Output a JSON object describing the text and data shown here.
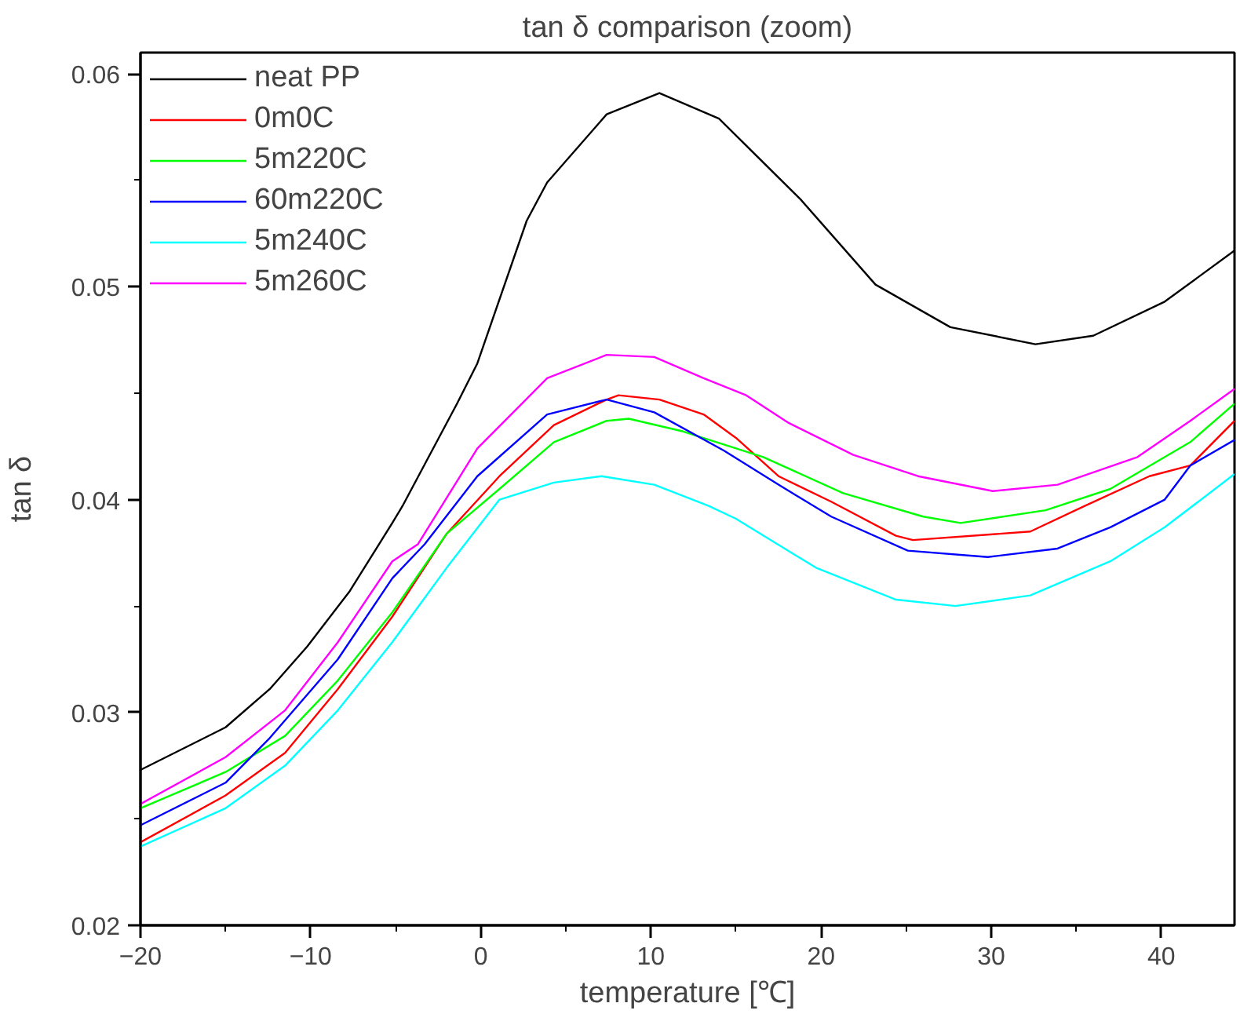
{
  "chart_data": {
    "type": "line",
    "title": "tan δ comparison (zoom)",
    "xlabel": "temperature [℃]",
    "ylabel": "tan δ",
    "xlim": [
      -20,
      44.3
    ],
    "ylim": [
      0.02,
      0.061
    ],
    "xticks": [
      -20,
      -10,
      0,
      10,
      20,
      30,
      40
    ],
    "yticks": [
      0.02,
      0.03,
      0.04,
      0.05,
      0.06
    ],
    "grid": false,
    "legend": "top left",
    "marker": "none",
    "line_style": "solid",
    "series": [
      {
        "name": "neat PP",
        "color": "#000000",
        "x": [
          -20,
          -15,
          -12.4,
          -10.2,
          -7.7,
          -5.2,
          -4.6,
          -1.4,
          -0.2,
          2.7,
          3.9,
          7.4,
          10.5,
          14,
          18.8,
          23.2,
          27.6,
          32.6,
          36,
          40.2,
          44.3
        ],
        "values": [
          0.0273,
          0.0293,
          0.0311,
          0.0331,
          0.0357,
          0.0389,
          0.0397,
          0.0445,
          0.0464,
          0.0531,
          0.0549,
          0.0581,
          0.0591,
          0.0579,
          0.0541,
          0.0501,
          0.0481,
          0.0473,
          0.0477,
          0.0493,
          0.0517
        ]
      },
      {
        "name": "0m0C",
        "color": "#ff0000",
        "x": [
          -20,
          -15,
          -11.5,
          -8.4,
          -5.2,
          -2,
          1.1,
          4.3,
          7.4,
          8.1,
          10.5,
          13.1,
          15,
          17.5,
          20.6,
          24.4,
          25.4,
          32.3,
          35.5,
          39.3,
          41.7,
          44.3
        ],
        "values": [
          0.0239,
          0.0261,
          0.0281,
          0.0311,
          0.0345,
          0.0384,
          0.0411,
          0.0435,
          0.0447,
          0.0449,
          0.0447,
          0.044,
          0.0429,
          0.0411,
          0.0399,
          0.0383,
          0.0381,
          0.0385,
          0.0397,
          0.0411,
          0.0416,
          0.0437
        ]
      },
      {
        "name": "5m220C",
        "color": "#00ff00",
        "x": [
          -20,
          -15,
          -11.5,
          -8.4,
          -5.2,
          -2,
          1.1,
          4.3,
          7.4,
          8.7,
          11.9,
          16.6,
          21.3,
          26,
          28.2,
          33.2,
          37,
          41.7,
          44.3
        ],
        "values": [
          0.0255,
          0.0272,
          0.0289,
          0.0315,
          0.0347,
          0.0384,
          0.0405,
          0.0427,
          0.0437,
          0.0438,
          0.0432,
          0.042,
          0.0403,
          0.0392,
          0.0389,
          0.0395,
          0.0405,
          0.0427,
          0.0445
        ]
      },
      {
        "name": "60m220C",
        "color": "#0000ff",
        "x": [
          -20,
          -15,
          -12.4,
          -8.4,
          -5.2,
          -3.3,
          -0.2,
          3.9,
          7.4,
          10.2,
          14.3,
          17.5,
          20.6,
          25.1,
          29.8,
          33.9,
          37,
          40.2,
          41.7,
          44.3
        ],
        "values": [
          0.0247,
          0.0267,
          0.0288,
          0.0325,
          0.0363,
          0.0379,
          0.0411,
          0.044,
          0.0447,
          0.0441,
          0.0423,
          0.0407,
          0.0392,
          0.0376,
          0.0373,
          0.0377,
          0.0387,
          0.04,
          0.0416,
          0.0428
        ]
      },
      {
        "name": "5m240C",
        "color": "#00ffff",
        "x": [
          -20,
          -15,
          -11.5,
          -8.4,
          -5.2,
          -2,
          1.1,
          4.3,
          7.1,
          10.2,
          13.4,
          15,
          19.7,
          24.4,
          27.9,
          32.3,
          37,
          40.2,
          44.3
        ],
        "values": [
          0.0237,
          0.0255,
          0.0275,
          0.0301,
          0.0333,
          0.0368,
          0.04,
          0.0408,
          0.0411,
          0.0407,
          0.0397,
          0.0391,
          0.0368,
          0.0353,
          0.035,
          0.0355,
          0.0371,
          0.0387,
          0.0412
        ]
      },
      {
        "name": "5m260C",
        "color": "#ff00ff",
        "x": [
          -20,
          -15,
          -11.5,
          -8.4,
          -5.2,
          -3.7,
          -0.2,
          3.9,
          7.4,
          10.2,
          13.1,
          15.6,
          18.1,
          21.9,
          25.7,
          30.1,
          33.9,
          38.6,
          41.7,
          44.3
        ],
        "values": [
          0.0257,
          0.0279,
          0.0301,
          0.0333,
          0.0371,
          0.0379,
          0.0424,
          0.0457,
          0.0468,
          0.0467,
          0.0457,
          0.0449,
          0.0436,
          0.0421,
          0.0411,
          0.0404,
          0.0407,
          0.042,
          0.0437,
          0.0452
        ]
      }
    ]
  }
}
